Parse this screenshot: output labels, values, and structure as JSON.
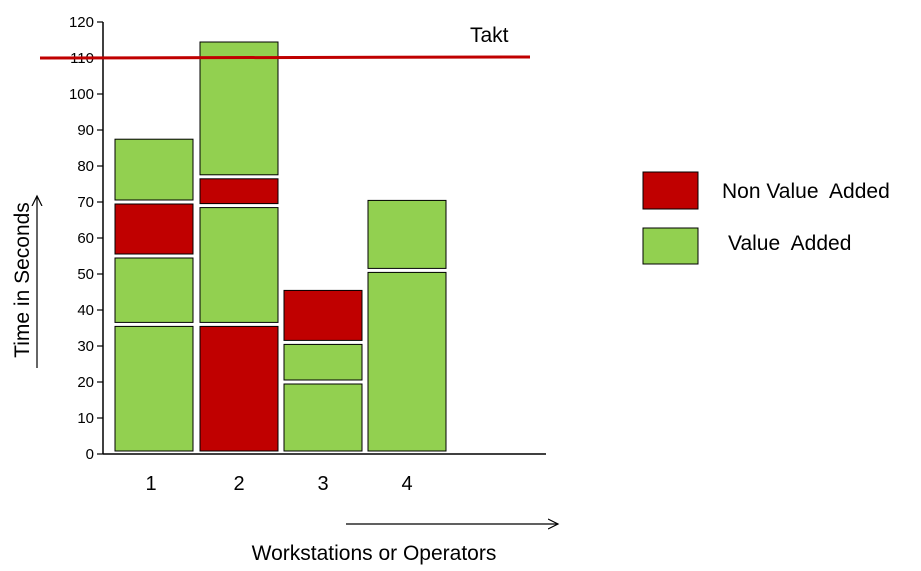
{
  "chart_data": {
    "type": "bar",
    "stacked": true,
    "title": "",
    "xlabel": "Workstations or Operators",
    "ylabel": "Time in Seconds",
    "ylim": [
      0,
      120
    ],
    "yticks": [
      0,
      10,
      20,
      30,
      40,
      50,
      60,
      70,
      80,
      90,
      100,
      110,
      120
    ],
    "categories": [
      "1",
      "2",
      "3",
      "4"
    ],
    "segments": [
      [
        {
          "kind": "value_added",
          "start": 0,
          "end": 36
        },
        {
          "kind": "value_added",
          "start": 36,
          "end": 55
        },
        {
          "kind": "non_value_added",
          "start": 55,
          "end": 70
        },
        {
          "kind": "value_added",
          "start": 70,
          "end": 88
        }
      ],
      [
        {
          "kind": "non_value_added",
          "start": 0,
          "end": 36
        },
        {
          "kind": "value_added",
          "start": 36,
          "end": 69
        },
        {
          "kind": "non_value_added",
          "start": 69,
          "end": 77
        },
        {
          "kind": "value_added",
          "start": 77,
          "end": 115
        }
      ],
      [
        {
          "kind": "value_added",
          "start": 0,
          "end": 20
        },
        {
          "kind": "value_added",
          "start": 20,
          "end": 31
        },
        {
          "kind": "non_value_added",
          "start": 31,
          "end": 46
        }
      ],
      [
        {
          "kind": "value_added",
          "start": 0,
          "end": 51
        },
        {
          "kind": "value_added",
          "start": 51,
          "end": 71
        }
      ]
    ],
    "takt": {
      "label": "Takt",
      "value": 110
    },
    "legend": {
      "placement": "right",
      "items": [
        {
          "kind": "non_value_added",
          "label": "Non Value  Added"
        },
        {
          "kind": "value_added",
          "label": "Value  Added"
        }
      ]
    },
    "colors": {
      "value_added": "#92d050",
      "non_value_added": "#c00000",
      "takt": "#c00000",
      "outline": "#000000"
    }
  }
}
